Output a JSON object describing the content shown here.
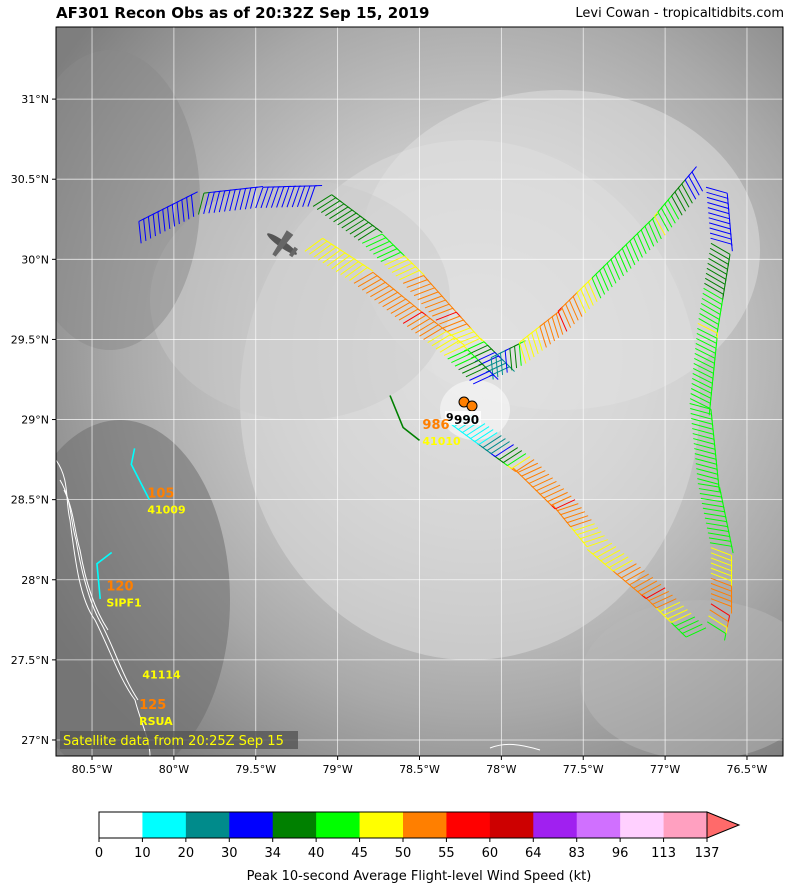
{
  "header": {
    "title": "AF301 Recon Obs as of 20:32Z Sep 15, 2019",
    "credit": "Levi Cowan - tropicaltidbits.com"
  },
  "map": {
    "lon_ticks": [
      "80.5°W",
      "80°W",
      "79.5°W",
      "79°W",
      "78.5°W",
      "78°W",
      "77.5°W",
      "77°W",
      "76.5°W"
    ],
    "lon_values": [
      -80.5,
      -80.0,
      -79.5,
      -79.0,
      -78.5,
      -78.0,
      -77.5,
      -77.0,
      -76.5
    ],
    "lat_ticks": [
      "31°N",
      "30.5°N",
      "30°N",
      "29.5°N",
      "29°N",
      "28.5°N",
      "28°N",
      "27.5°N",
      "27°N"
    ],
    "lat_values": [
      31.0,
      30.5,
      30.0,
      29.5,
      29.0,
      28.5,
      28.0,
      27.5,
      27.0
    ],
    "lon_range": [
      -80.72,
      -76.28
    ],
    "lat_range": [
      26.9,
      31.45
    ],
    "satellite_label": "Satellite data from 20:25Z Sep 15",
    "stations": [
      {
        "id": "41010",
        "wind": "986",
        "lon": -78.47,
        "lat": 28.93
      },
      {
        "id": "41009",
        "wind": "105",
        "lon": -80.15,
        "lat": 28.5
      },
      {
        "id": "SIPF1",
        "wind": "120",
        "lon": -80.4,
        "lat": 27.92
      },
      {
        "id": "41114",
        "wind": "",
        "lon": -80.18,
        "lat": 27.47
      },
      {
        "id": "RSUA",
        "wind": "125",
        "lon": -80.2,
        "lat": 27.18
      }
    ],
    "center_pressure": "990",
    "center_pressure_small": "9",
    "flight_track": [
      {
        "lon": -80.2,
        "lat": 30.1,
        "wind": 30
      },
      {
        "lon": -79.85,
        "lat": 30.28,
        "wind": 34
      },
      {
        "lon": -79.5,
        "lat": 30.32,
        "wind": 30
      },
      {
        "lon": -79.15,
        "lat": 30.33,
        "wind": 34
      },
      {
        "lon": -78.85,
        "lat": 30.1,
        "wind": 40
      },
      {
        "lon": -78.6,
        "lat": 29.85,
        "wind": 50
      },
      {
        "lon": -78.4,
        "lat": 29.62,
        "wind": 55
      },
      {
        "lon": -78.25,
        "lat": 29.45,
        "wind": 45
      },
      {
        "lon": -78.05,
        "lat": 29.25,
        "wind": 20
      },
      {
        "lon": -77.85,
        "lat": 29.35,
        "wind": 45
      },
      {
        "lon": -77.6,
        "lat": 29.55,
        "wind": 55
      },
      {
        "lon": -77.3,
        "lat": 29.85,
        "wind": 40
      },
      {
        "lon": -77.0,
        "lat": 30.15,
        "wind": 45
      },
      {
        "lon": -76.75,
        "lat": 30.45,
        "wind": 30
      },
      {
        "lon": -76.72,
        "lat": 30.1,
        "wind": 34
      },
      {
        "lon": -76.8,
        "lat": 29.6,
        "wind": 45
      },
      {
        "lon": -76.85,
        "lat": 29.1,
        "wind": 40
      },
      {
        "lon": -76.8,
        "lat": 28.6,
        "wind": 40
      },
      {
        "lon": -76.72,
        "lat": 28.2,
        "wind": 45
      },
      {
        "lon": -76.72,
        "lat": 27.85,
        "wind": 55
      },
      {
        "lon": -76.75,
        "lat": 27.7,
        "wind": 40
      },
      {
        "lon": -77.0,
        "lat": 27.95,
        "wind": 55
      },
      {
        "lon": -77.35,
        "lat": 28.25,
        "wind": 45
      },
      {
        "lon": -77.55,
        "lat": 28.5,
        "wind": 55
      },
      {
        "lon": -77.8,
        "lat": 28.75,
        "wind": 50
      },
      {
        "lon": -78.0,
        "lat": 28.9,
        "wind": 20
      },
      {
        "lon": -78.2,
        "lat": 29.05,
        "wind": 10
      }
    ],
    "inbound_leg": [
      {
        "lon": -79.2,
        "lat": 30.05,
        "wind": 45
      },
      {
        "lon": -78.9,
        "lat": 29.85,
        "wind": 50
      },
      {
        "lon": -78.6,
        "lat": 29.6,
        "wind": 55
      },
      {
        "lon": -78.35,
        "lat": 29.4,
        "wind": 45
      },
      {
        "lon": -78.15,
        "lat": 29.2,
        "wind": 30
      }
    ],
    "buoy_lines": [
      {
        "color": "#00ffff",
        "pts": [
          [
            -80.15,
            28.5
          ],
          [
            -80.26,
            28.72
          ],
          [
            -80.24,
            28.82
          ]
        ]
      },
      {
        "color": "#00ffff",
        "pts": [
          [
            -80.45,
            27.88
          ],
          [
            -80.47,
            28.1
          ],
          [
            -80.38,
            28.17
          ]
        ]
      },
      {
        "color": "#008000",
        "pts": [
          [
            -78.5,
            28.87
          ],
          [
            -78.6,
            28.95
          ],
          [
            -78.68,
            29.15
          ]
        ]
      }
    ]
  },
  "colorbar": {
    "title": "Peak 10-second Average Flight-level Wind Speed (kt)",
    "ticks": [
      "0",
      "10",
      "20",
      "30",
      "34",
      "40",
      "45",
      "50",
      "55",
      "60",
      "64",
      "83",
      "96",
      "113",
      "137"
    ],
    "colors": [
      "#ffffff",
      "#00ffff",
      "#008b8b",
      "#0000ff",
      "#008000",
      "#00ff00",
      "#ffff00",
      "#ff7f00",
      "#ff0000",
      "#cd0000",
      "#a020f0",
      "#d070ff",
      "#ffd0ff",
      "#ffa0c0",
      "#ff6a6a"
    ]
  }
}
